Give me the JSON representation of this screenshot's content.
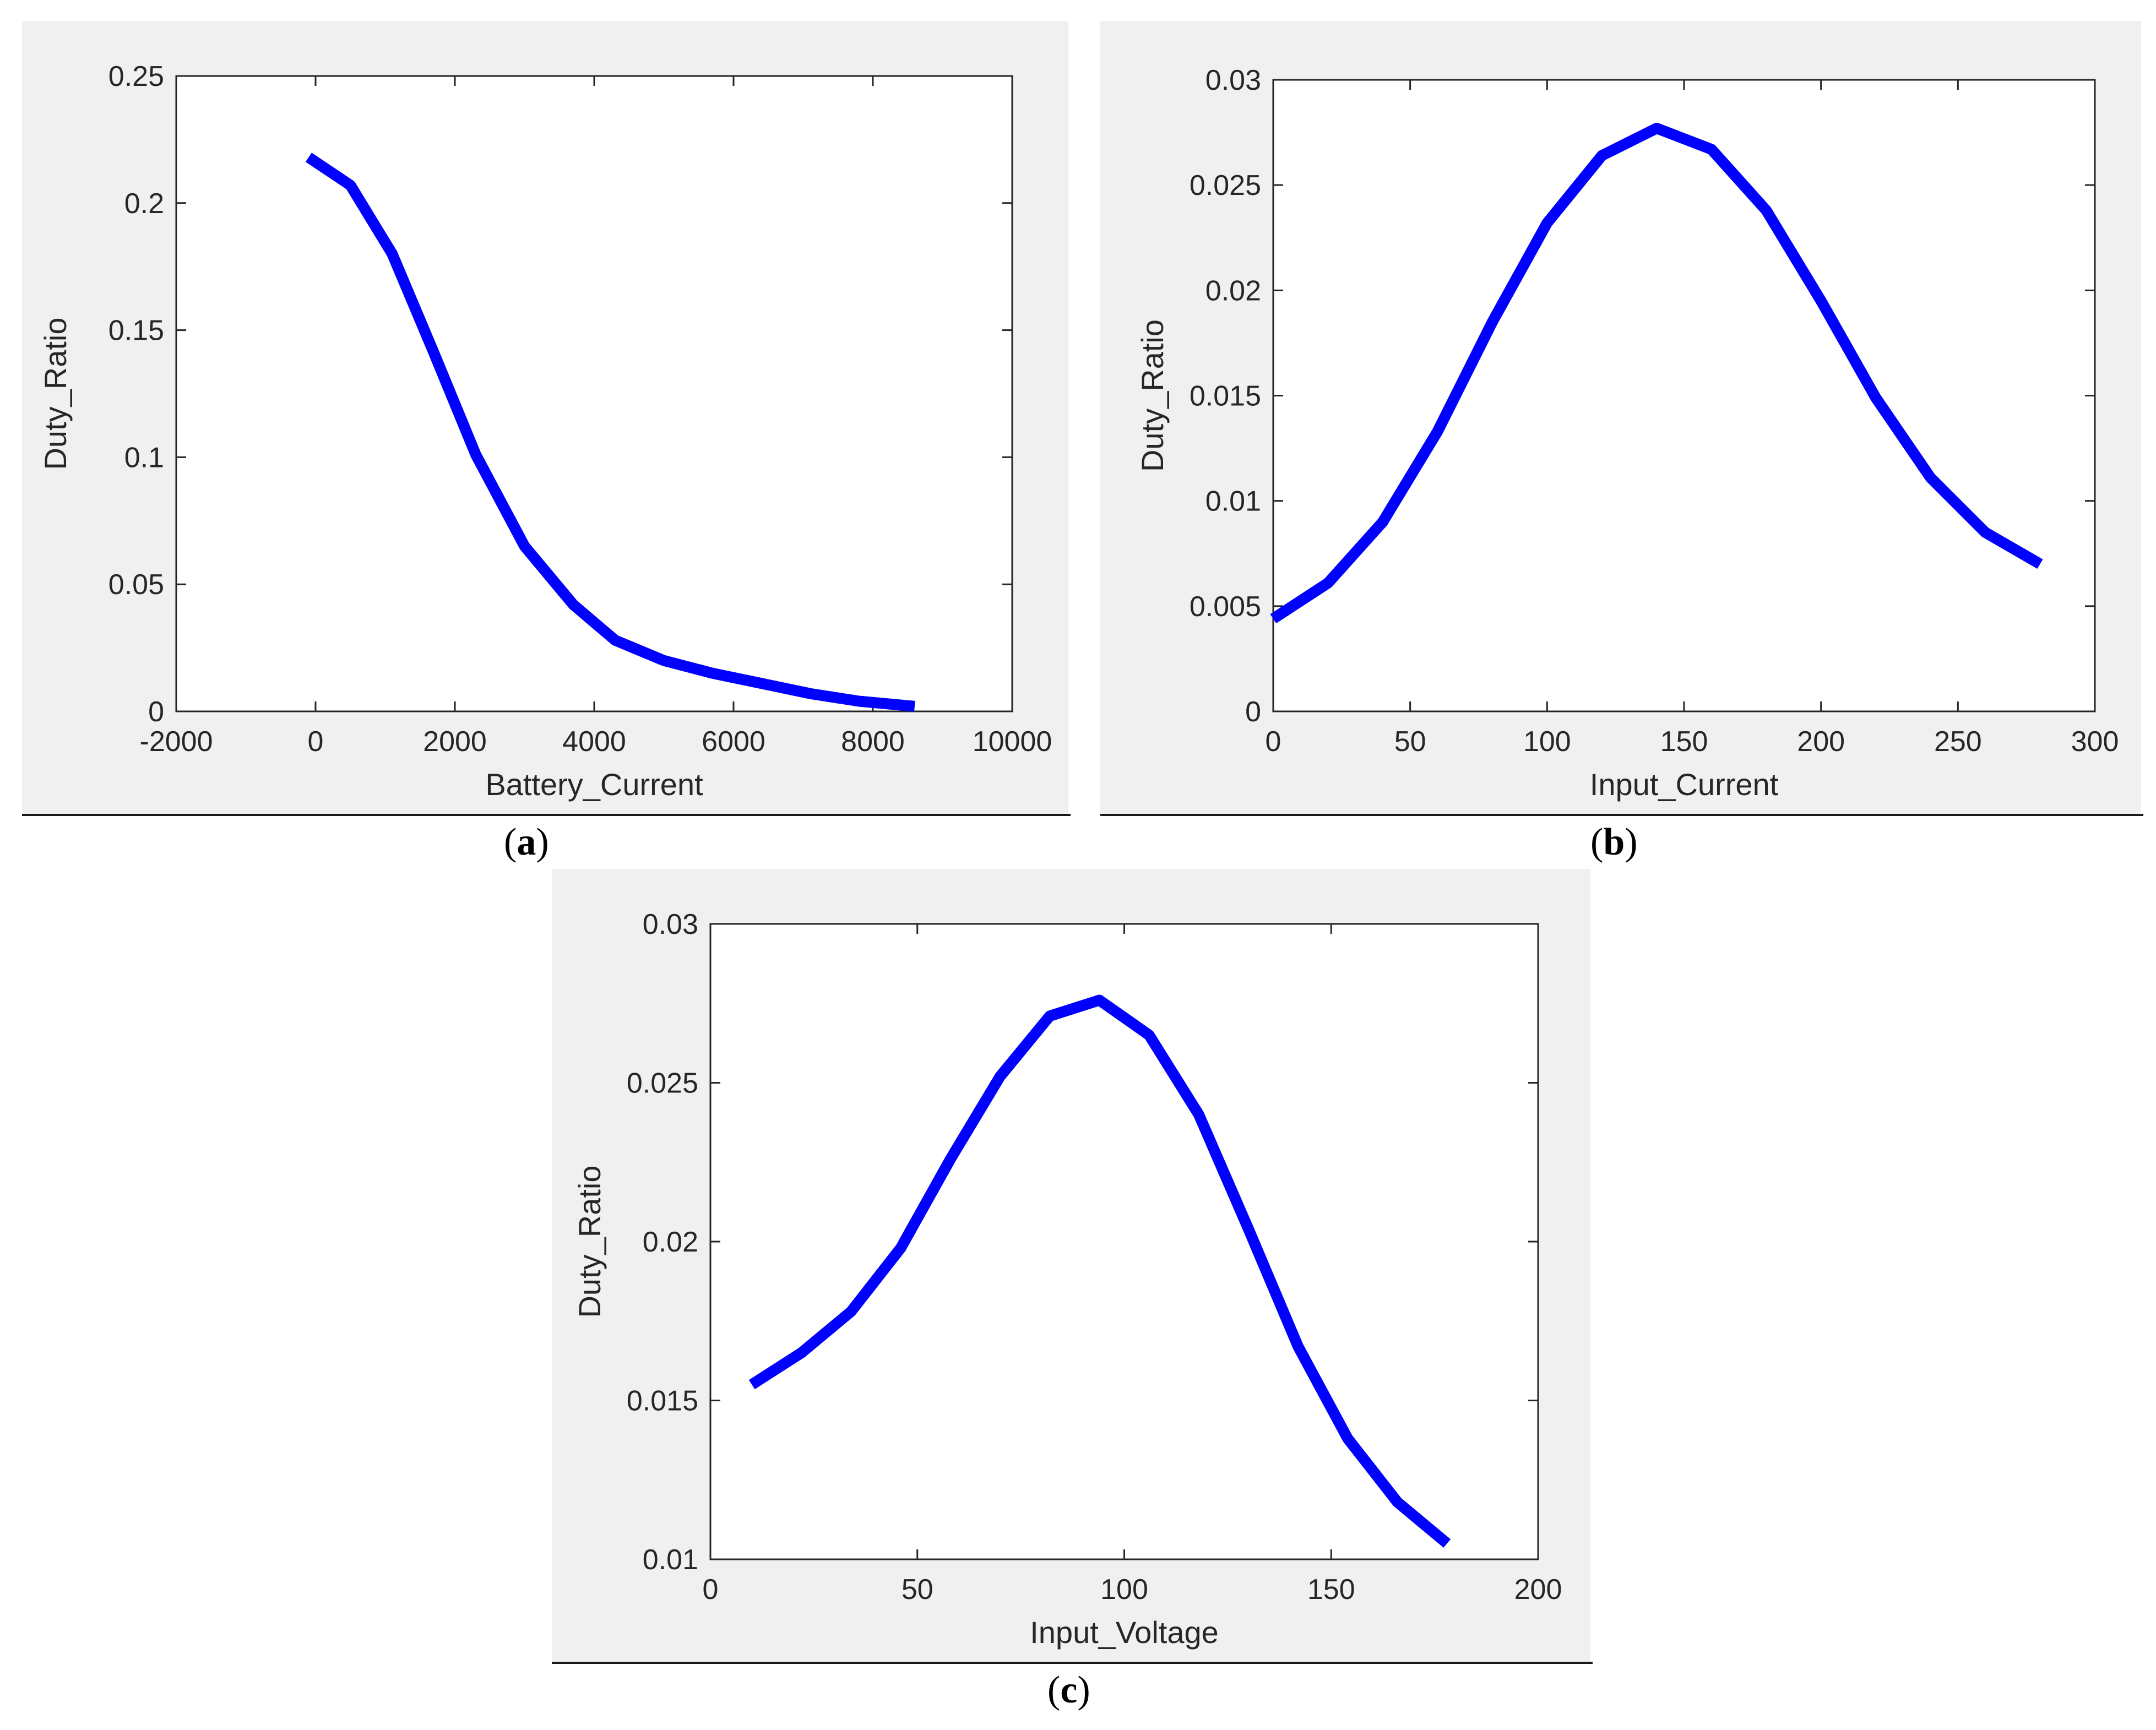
{
  "colors": {
    "line": "#0000ff",
    "panel": "#f0f0f0",
    "axis": "#262626"
  },
  "chart_data": [
    {
      "type": "line",
      "panel": "a",
      "caption": "a",
      "xlabel": "Battery_Current",
      "ylabel": "Duty_Ratio",
      "xlim": [
        -2000,
        10000
      ],
      "ylim": [
        0,
        0.25
      ],
      "xticks": [
        -2000,
        0,
        2000,
        4000,
        6000,
        8000,
        10000
      ],
      "yticks": [
        0,
        0.05,
        0.1,
        0.15,
        0.2,
        0.25
      ],
      "xtick_labels": [
        "-2000",
        "0",
        "2000",
        "4000",
        "6000",
        "8000",
        "10000"
      ],
      "ytick_labels": [
        "0",
        "0.05",
        "0.1",
        "0.15",
        "0.2",
        "0.25"
      ],
      "grid": false,
      "series": [
        {
          "x": [
            -100,
            500,
            1100,
            1700,
            2300,
            3000,
            3700,
            4300,
            5000,
            5700,
            6400,
            7100,
            7800,
            8600
          ],
          "y": [
            0.218,
            0.207,
            0.18,
            0.141,
            0.101,
            0.065,
            0.042,
            0.028,
            0.02,
            0.015,
            0.011,
            0.007,
            0.004,
            0.002
          ]
        }
      ]
    },
    {
      "type": "line",
      "panel": "b",
      "caption": "b",
      "xlabel": "Input_Current",
      "ylabel": "Duty_Ratio",
      "xlim": [
        0,
        300
      ],
      "ylim": [
        0,
        0.03
      ],
      "xticks": [
        0,
        50,
        100,
        150,
        200,
        250,
        300
      ],
      "yticks": [
        0,
        0.005,
        0.01,
        0.015,
        0.02,
        0.025,
        0.03
      ],
      "xtick_labels": [
        "0",
        "50",
        "100",
        "150",
        "200",
        "250",
        "300"
      ],
      "ytick_labels": [
        "0",
        "0.005",
        "0.01",
        "0.015",
        "0.02",
        "0.025",
        "0.03"
      ],
      "grid": false,
      "series": [
        {
          "x": [
            0,
            20,
            40,
            60,
            80,
            100,
            120,
            140,
            160,
            180,
            200,
            220,
            240,
            260,
            280
          ],
          "y": [
            0.0044,
            0.0061,
            0.009,
            0.0133,
            0.0185,
            0.0232,
            0.0264,
            0.0277,
            0.0267,
            0.0238,
            0.0195,
            0.0149,
            0.0111,
            0.0085,
            0.007
          ]
        }
      ]
    },
    {
      "type": "line",
      "panel": "c",
      "caption": "c",
      "xlabel": "Input_Voltage",
      "ylabel": "Duty_Ratio",
      "xlim": [
        0,
        200
      ],
      "ylim": [
        0.01,
        0.03
      ],
      "xticks": [
        0,
        50,
        100,
        150,
        200
      ],
      "yticks": [
        0.01,
        0.015,
        0.02,
        0.025,
        0.03
      ],
      "xtick_labels": [
        "0",
        "50",
        "100",
        "150",
        "200"
      ],
      "ytick_labels": [
        "0.01",
        "0.015",
        "0.02",
        "0.025",
        "0.03"
      ],
      "grid": false,
      "series": [
        {
          "x": [
            10,
            22,
            34,
            46,
            58,
            70,
            82,
            94,
            106,
            118,
            130,
            142,
            154,
            166,
            178
          ],
          "y": [
            0.0155,
            0.0165,
            0.0178,
            0.0198,
            0.0226,
            0.0252,
            0.0271,
            0.0276,
            0.0265,
            0.024,
            0.0204,
            0.0167,
            0.0138,
            0.0118,
            0.0105
          ]
        }
      ]
    }
  ]
}
